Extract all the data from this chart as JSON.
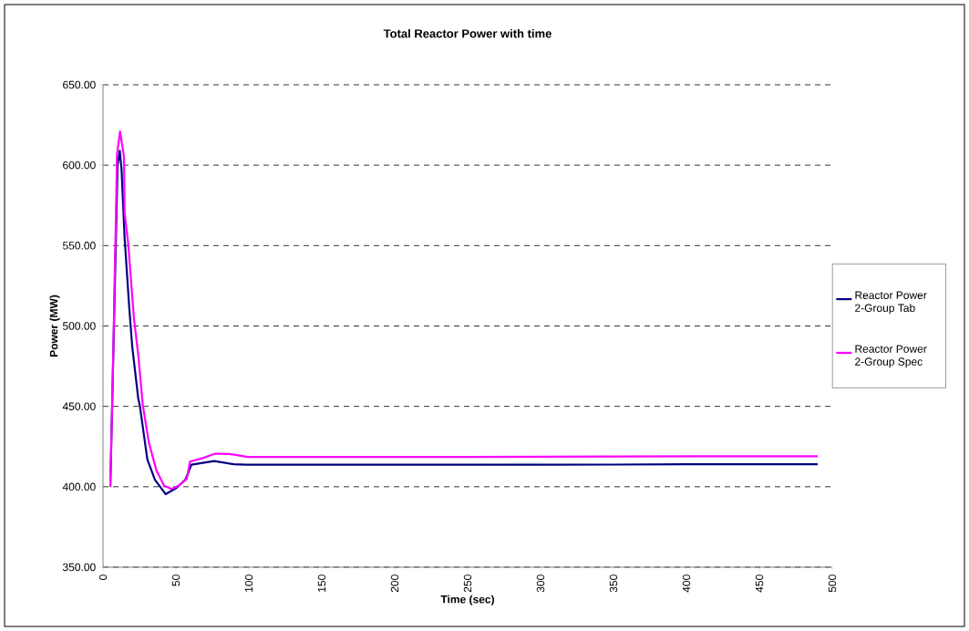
{
  "chart_data": {
    "type": "line",
    "title": "Total Reactor Power with time",
    "xlabel": "Time (sec)",
    "ylabel": "Power (MW)",
    "xlim": [
      0,
      500
    ],
    "ylim": [
      350,
      650
    ],
    "xticks": [
      0,
      50,
      100,
      150,
      200,
      250,
      300,
      350,
      400,
      450,
      500
    ],
    "yticks": [
      {
        "value": 350,
        "label": "350.00"
      },
      {
        "value": 400,
        "label": "400.00"
      },
      {
        "value": 450,
        "label": "450.00"
      },
      {
        "value": 500,
        "label": "500.00"
      },
      {
        "value": 550,
        "label": "550.00"
      },
      {
        "value": 600,
        "label": "600.00"
      },
      {
        "value": 650,
        "label": "650.00"
      }
    ],
    "grid": "y",
    "legend": "right",
    "marker": "none",
    "line_style": "solid",
    "series": [
      {
        "name": "Reactor Power 2-Group Tab",
        "color": "#000080",
        "x": [
          5,
          7,
          8.5,
          10,
          11.5,
          12.7,
          14.8,
          17.9,
          20,
          24.2,
          25.2,
          30.4,
          35.6,
          42.9,
          50.2,
          56.5,
          60.6,
          76.2,
          89.8,
          98.1,
          150,
          200,
          250,
          300,
          350,
          400,
          450,
          490
        ],
        "values": [
          400,
          null,
          540,
          600,
          609,
          597.6,
          555,
          512.6,
          487.5,
          454.6,
          450.7,
          417,
          404.4,
          395.4,
          399.2,
          404.4,
          413.7,
          416,
          414,
          413.7,
          413.7,
          413.7,
          413.7,
          413.7,
          413.8,
          414,
          414,
          414
        ]
      },
      {
        "name": "Reactor Power 2-Group Spec",
        "color": "#ff00ff",
        "x": [
          5,
          6.4,
          7.5,
          8.1,
          8.9,
          9.6,
          11.7,
          14.4,
          14.8,
          17.3,
          21.2,
          24.2,
          27.3,
          31.4,
          36.6,
          41.9,
          47.1,
          52.3,
          57.5,
          59.6,
          69,
          76.9,
          86.7,
          99.2,
          150,
          200,
          250,
          300,
          350,
          400,
          450,
          490
        ],
        "values": [
          400,
          454.6,
          504.9,
          535.7,
          568.8,
          607,
          621,
          605,
          570.5,
          551,
          504.9,
          481.7,
          450.7,
          427.6,
          410.2,
          400.6,
          398.6,
          400.9,
          405,
          415.6,
          418,
          420.6,
          420.4,
          418.5,
          418.5,
          418.5,
          418.5,
          418.7,
          418.8,
          418.9,
          419,
          419
        ]
      }
    ]
  }
}
